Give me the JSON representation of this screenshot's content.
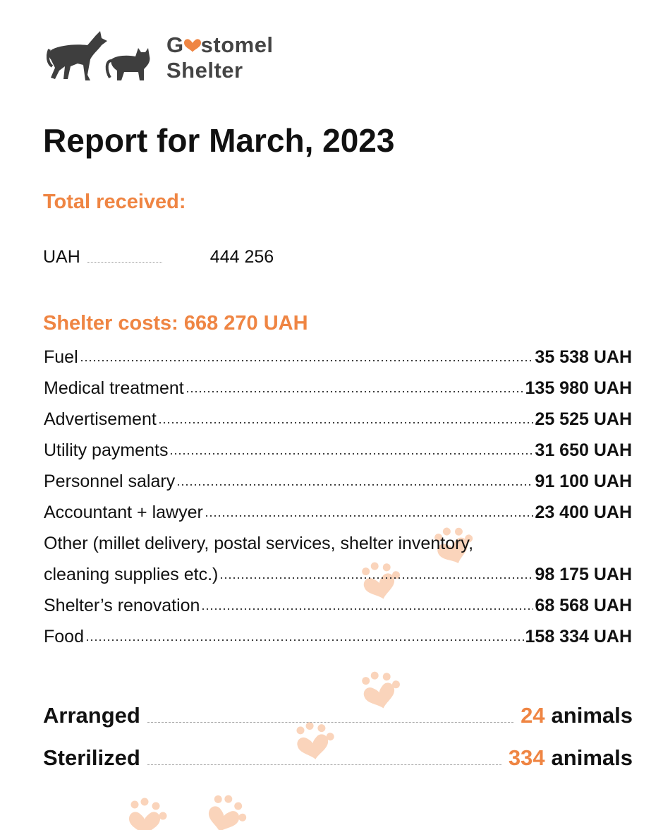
{
  "logo": {
    "line1_start": "G",
    "line1_end": "stomel",
    "line2": "Shelter"
  },
  "title": "Report for March, 2023",
  "total_received": {
    "heading": "Total received:",
    "currency": "UAH",
    "amount": "444 256"
  },
  "shelter_costs": {
    "heading": "Shelter costs: 668 270 UAH",
    "items": [
      {
        "label_lines": [
          "Fuel"
        ],
        "amount": "35 538 UAH"
      },
      {
        "label_lines": [
          "Medical treatment"
        ],
        "amount": "135 980 UAH"
      },
      {
        "label_lines": [
          "Advertisement"
        ],
        "amount": "25 525 UAH"
      },
      {
        "label_lines": [
          "Utility payments"
        ],
        "amount": "31 650 UAH"
      },
      {
        "label_lines": [
          "Personnel salary"
        ],
        "amount": "91 100 UAH"
      },
      {
        "label_lines": [
          "Accountant + lawyer"
        ],
        "amount": "23 400 UAH"
      },
      {
        "label_lines": [
          "Other (millet delivery, postal services, shelter inventory,",
          "cleaning supplies etc.)"
        ],
        "amount": "98 175 UAH"
      },
      {
        "label_lines": [
          "Shelter’s renovation"
        ],
        "amount": "68 568 UAH"
      },
      {
        "label_lines": [
          "Food"
        ],
        "amount": "158 334 UAH"
      }
    ]
  },
  "stats": [
    {
      "label": "Arranged",
      "number": "24",
      "unit": "animals"
    },
    {
      "label": "Sterilized",
      "number": "334",
      "unit": "animals"
    }
  ]
}
